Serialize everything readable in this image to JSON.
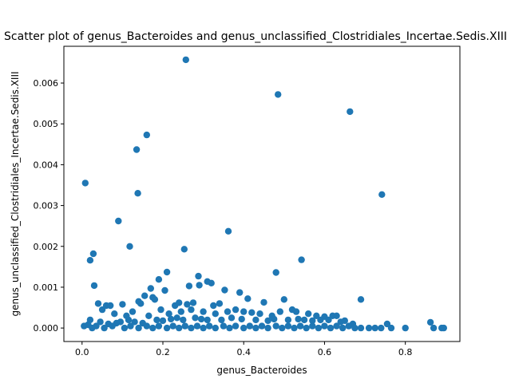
{
  "chart_data": {
    "type": "scatter",
    "title": "Scatter plot of genus_Bacteroides and genus_unclassified_Clostridiales_Incertae.Sedis.XIII",
    "xlabel": "genus_Bacteroides",
    "ylabel": "genus_unclassified_Clostridiales_Incertae.Sedis.XIII",
    "xlim": [
      -0.045,
      0.935
    ],
    "ylim": [
      -0.00033,
      0.0069
    ],
    "xticks": [
      0.0,
      0.2,
      0.4,
      0.6,
      0.8
    ],
    "xtick_labels": [
      "0.0",
      "0.2",
      "0.4",
      "0.6",
      "0.8"
    ],
    "yticks": [
      0.0,
      0.001,
      0.002,
      0.003,
      0.004,
      0.005,
      0.006
    ],
    "ytick_labels": [
      "0.000",
      "0.001",
      "0.002",
      "0.003",
      "0.004",
      "0.005",
      "0.006"
    ],
    "grid": false,
    "marker_color": "#1f77b4",
    "points": [
      [
        0.257,
        0.00657
      ],
      [
        0.485,
        0.00572
      ],
      [
        0.663,
        0.0053
      ],
      [
        0.16,
        0.00473
      ],
      [
        0.135,
        0.00437
      ],
      [
        0.008,
        0.00355
      ],
      [
        0.138,
        0.0033
      ],
      [
        0.742,
        0.00327
      ],
      [
        0.09,
        0.00262
      ],
      [
        0.362,
        0.00237
      ],
      [
        0.118,
        0.002
      ],
      [
        0.253,
        0.00193
      ],
      [
        0.028,
        0.00182
      ],
      [
        0.02,
        0.00166
      ],
      [
        0.543,
        0.00167
      ],
      [
        0.21,
        0.00137
      ],
      [
        0.48,
        0.00136
      ],
      [
        0.288,
        0.00127
      ],
      [
        0.03,
        0.00104
      ],
      [
        0.19,
        0.00119
      ],
      [
        0.31,
        0.00114
      ],
      [
        0.32,
        0.0011
      ],
      [
        0.265,
        0.00103
      ],
      [
        0.29,
        0.00105
      ],
      [
        0.353,
        0.00093
      ],
      [
        0.205,
        0.00092
      ],
      [
        0.17,
        0.00097
      ],
      [
        0.39,
        0.00087
      ],
      [
        0.155,
        0.00079
      ],
      [
        0.06,
        0.00055
      ],
      [
        0.04,
        0.0006
      ],
      [
        0.07,
        0.00055
      ],
      [
        0.1,
        0.00058
      ],
      [
        0.14,
        0.00065
      ],
      [
        0.145,
        0.0006
      ],
      [
        0.175,
        0.00075
      ],
      [
        0.18,
        0.0007
      ],
      [
        0.23,
        0.00055
      ],
      [
        0.24,
        0.00062
      ],
      [
        0.26,
        0.00058
      ],
      [
        0.275,
        0.00062
      ],
      [
        0.325,
        0.00055
      ],
      [
        0.34,
        0.0006
      ],
      [
        0.41,
        0.00072
      ],
      [
        0.45,
        0.00063
      ],
      [
        0.5,
        0.0007
      ],
      [
        0.52,
        0.00045
      ],
      [
        0.69,
        0.0007
      ],
      [
        0.05,
        0.00045
      ],
      [
        0.08,
        0.00035
      ],
      [
        0.11,
        0.0003
      ],
      [
        0.125,
        0.0004
      ],
      [
        0.165,
        0.0003
      ],
      [
        0.195,
        0.00045
      ],
      [
        0.215,
        0.00035
      ],
      [
        0.245,
        0.0004
      ],
      [
        0.27,
        0.00045
      ],
      [
        0.3,
        0.0004
      ],
      [
        0.33,
        0.00035
      ],
      [
        0.36,
        0.0004
      ],
      [
        0.38,
        0.00045
      ],
      [
        0.4,
        0.0004
      ],
      [
        0.42,
        0.00038
      ],
      [
        0.44,
        0.00035
      ],
      [
        0.47,
        0.0003
      ],
      [
        0.49,
        0.0004
      ],
      [
        0.53,
        0.0004
      ],
      [
        0.56,
        0.00035
      ],
      [
        0.58,
        0.0003
      ],
      [
        0.6,
        0.00028
      ],
      [
        0.62,
        0.0003
      ],
      [
        0.63,
        0.0003
      ],
      [
        0.65,
        0.00018
      ],
      [
        0.02,
        0.0002
      ],
      [
        0.045,
        0.00015
      ],
      [
        0.065,
        0.0001
      ],
      [
        0.085,
        0.00012
      ],
      [
        0.095,
        0.00015
      ],
      [
        0.115,
        0.0002
      ],
      [
        0.13,
        0.00015
      ],
      [
        0.15,
        0.00012
      ],
      [
        0.185,
        0.0002
      ],
      [
        0.2,
        0.00018
      ],
      [
        0.22,
        0.00022
      ],
      [
        0.235,
        0.00025
      ],
      [
        0.25,
        0.0002
      ],
      [
        0.28,
        0.00025
      ],
      [
        0.295,
        0.00022
      ],
      [
        0.31,
        0.0002
      ],
      [
        0.345,
        0.0002
      ],
      [
        0.37,
        0.00025
      ],
      [
        0.395,
        0.00022
      ],
      [
        0.43,
        0.0002
      ],
      [
        0.46,
        0.00018
      ],
      [
        0.475,
        0.00022
      ],
      [
        0.51,
        0.0002
      ],
      [
        0.535,
        0.00022
      ],
      [
        0.55,
        0.0002
      ],
      [
        0.57,
        0.00018
      ],
      [
        0.59,
        0.0002
      ],
      [
        0.61,
        0.0002
      ],
      [
        0.64,
        0.00015
      ],
      [
        0.67,
        0.0001
      ],
      [
        0.005,
        5e-05
      ],
      [
        0.015,
        8e-05
      ],
      [
        0.025,
        0.0
      ],
      [
        0.035,
        5e-05
      ],
      [
        0.055,
        0.0
      ],
      [
        0.075,
        5e-05
      ],
      [
        0.105,
        0.0
      ],
      [
        0.12,
        5e-05
      ],
      [
        0.14,
        0.0
      ],
      [
        0.16,
        5e-05
      ],
      [
        0.175,
        0.0
      ],
      [
        0.19,
        5e-05
      ],
      [
        0.21,
        0.0
      ],
      [
        0.225,
        5e-05
      ],
      [
        0.24,
        0.0
      ],
      [
        0.255,
        5e-05
      ],
      [
        0.27,
        0.0
      ],
      [
        0.285,
        5e-05
      ],
      [
        0.3,
        0.0
      ],
      [
        0.315,
        5e-05
      ],
      [
        0.33,
        0.0
      ],
      [
        0.35,
        5e-05
      ],
      [
        0.365,
        0.0
      ],
      [
        0.38,
        5e-05
      ],
      [
        0.4,
        0.0
      ],
      [
        0.415,
        5e-05
      ],
      [
        0.43,
        0.0
      ],
      [
        0.445,
        5e-05
      ],
      [
        0.46,
        0.0
      ],
      [
        0.48,
        5e-05
      ],
      [
        0.495,
        0.0
      ],
      [
        0.51,
        5e-05
      ],
      [
        0.525,
        0.0
      ],
      [
        0.54,
        5e-05
      ],
      [
        0.555,
        0.0
      ],
      [
        0.57,
        5e-05
      ],
      [
        0.585,
        0.0
      ],
      [
        0.6,
        5e-05
      ],
      [
        0.615,
        0.0
      ],
      [
        0.63,
        5e-05
      ],
      [
        0.645,
        0.0
      ],
      [
        0.66,
        5e-05
      ],
      [
        0.675,
        0.0
      ],
      [
        0.69,
        0.0
      ],
      [
        0.71,
        0.0
      ],
      [
        0.725,
        0.0
      ],
      [
        0.74,
        0.0
      ],
      [
        0.755,
        0.0001
      ],
      [
        0.765,
        0.0
      ],
      [
        0.8,
        0.0
      ],
      [
        0.862,
        0.00014
      ],
      [
        0.87,
        0.0
      ],
      [
        0.89,
        0.0
      ],
      [
        0.895,
        0.0
      ]
    ]
  }
}
